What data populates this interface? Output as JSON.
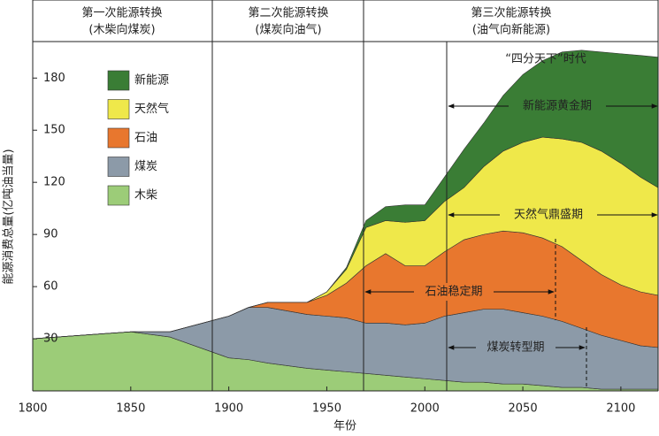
{
  "chart_data": {
    "type": "stacked_area",
    "header": [
      {
        "title": "第一次能源转换",
        "subtitle": "(木柴向煤炭)"
      },
      {
        "title": "第二次能源转换",
        "subtitle": "(煤炭向油气)"
      },
      {
        "title": "第三次能源转换",
        "subtitle": "(油气向新能源)"
      }
    ],
    "xlabel": "年份",
    "ylabel": "能源消费总量(亿吨油当量)",
    "x": [
      1800,
      1850,
      1870,
      1900,
      1910,
      1920,
      1940,
      1950,
      1960,
      1970,
      1980,
      1990,
      2000,
      2010,
      2020,
      2030,
      2040,
      2050,
      2060,
      2070,
      2080,
      2090,
      2100,
      2110,
      2119
    ],
    "series": [
      {
        "name": "木柴",
        "color": "#9ccc78",
        "values": [
          30,
          34,
          31,
          19,
          18,
          16,
          13,
          12,
          11,
          10,
          9,
          8,
          7,
          6,
          5,
          5,
          4,
          4,
          3,
          2,
          2,
          1,
          1,
          1,
          1
        ]
      },
      {
        "name": "煤炭",
        "color": "#8c9aa8",
        "values": [
          0,
          0,
          3,
          24,
          30,
          32,
          31,
          31,
          31,
          29,
          30,
          30,
          32,
          37,
          40,
          42,
          43,
          41,
          40,
          38,
          34,
          31,
          28,
          25,
          24
        ]
      },
      {
        "name": "石油",
        "color": "#e8772e",
        "values": [
          0,
          0,
          0,
          0,
          0,
          3,
          7,
          12,
          20,
          33,
          40,
          34,
          33,
          37,
          42,
          43,
          45,
          46,
          45,
          43,
          39,
          35,
          32,
          31,
          30
        ]
      },
      {
        "name": "天然气",
        "color": "#efe84a",
        "values": [
          0,
          0,
          0,
          0,
          0,
          0,
          0,
          2,
          8,
          22,
          19,
          25,
          26,
          29,
          30,
          39,
          46,
          52,
          58,
          62,
          68,
          71,
          70,
          66,
          62
        ]
      },
      {
        "name": "新能源",
        "color": "#3a7d35",
        "values": [
          0,
          0,
          0,
          0,
          0,
          0,
          0,
          0,
          1,
          4,
          8,
          10,
          9,
          14,
          22,
          25,
          32,
          39,
          44,
          50,
          53,
          57,
          63,
          70,
          75
        ]
      }
    ],
    "annotations": [
      "“四分天下”时代",
      "新能源黄金期",
      "天然气鼎盛期",
      "石油稳定期",
      "煤炭转型期"
    ],
    "xlim": [
      1800,
      2119
    ],
    "ylim": [
      0,
      201
    ],
    "xticks": [
      1800,
      1850,
      1900,
      1950,
      2000,
      2050,
      2100
    ],
    "yticks": [
      30,
      60,
      90,
      120,
      150,
      180
    ],
    "grid": false,
    "legend": "upper-left"
  }
}
